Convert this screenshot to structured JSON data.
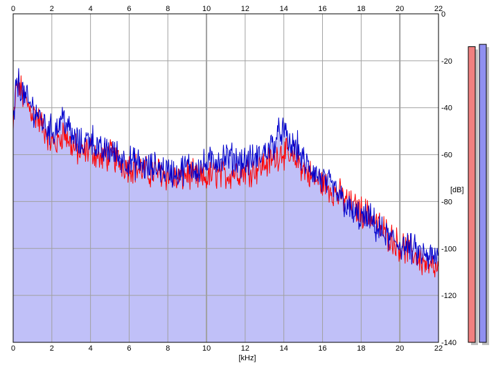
{
  "chart_data": {
    "type": "area",
    "title": "",
    "xlabel": "[kHz]",
    "ylabel": "[dB]",
    "xlim": [
      0,
      22
    ],
    "ylim": [
      -140,
      0
    ],
    "x_ticks": [
      0,
      2,
      4,
      6,
      8,
      10,
      12,
      14,
      16,
      18,
      20,
      22
    ],
    "y_ticks": [
      0,
      -20,
      -40,
      -60,
      -80,
      -100,
      -120,
      -140
    ],
    "grid": true,
    "legend": "none",
    "colors": {
      "left_channel": "#ff0000",
      "right_channel": "#0000cc",
      "fill": "#c0c0f8",
      "grid": "#a0a0a0",
      "meter_left": "#f08080",
      "meter_right": "#9090f0"
    },
    "series": [
      {
        "color": "red",
        "x": [
          0,
          0.15,
          0.3,
          0.5,
          0.7,
          1,
          1.3,
          1.6,
          2,
          2.3,
          2.6,
          3,
          3.5,
          4,
          4.5,
          5,
          5.5,
          6,
          6.5,
          7,
          7.5,
          8,
          8.5,
          9,
          9.5,
          10,
          10.5,
          11,
          11.5,
          12,
          12.5,
          13,
          13.5,
          13.9,
          14.3,
          14.7,
          15,
          15.5,
          16,
          16.5,
          17,
          17.5,
          18,
          18.5,
          19,
          19.5,
          20,
          20.5,
          21,
          21.5,
          22
        ],
        "y": [
          -50,
          -32,
          -30,
          -35,
          -38,
          -42,
          -45,
          -49,
          -55,
          -55,
          -50,
          -56,
          -60,
          -57,
          -62,
          -60,
          -63,
          -65,
          -66,
          -68,
          -67,
          -69,
          -71,
          -68,
          -70,
          -70,
          -68,
          -69,
          -67,
          -67,
          -66,
          -64,
          -62,
          -58,
          -62,
          -62,
          -66,
          -70,
          -72,
          -75,
          -78,
          -82,
          -84,
          -86,
          -91,
          -95,
          -99,
          -101,
          -104,
          -108,
          -110
        ]
      },
      {
        "color": "blue",
        "x": [
          0,
          0.15,
          0.3,
          0.5,
          0.7,
          1,
          1.3,
          1.6,
          2,
          2.3,
          2.6,
          3,
          3.5,
          4,
          4.5,
          5,
          5.5,
          6,
          6.5,
          7,
          7.5,
          8,
          8.5,
          9,
          9.5,
          10,
          10.5,
          11,
          11.5,
          12,
          12.5,
          13,
          13.5,
          13.9,
          14.3,
          14.7,
          15,
          15.5,
          16,
          16.5,
          17,
          17.5,
          18,
          18.5,
          19,
          19.5,
          20,
          20.5,
          21,
          21.5,
          22
        ],
        "y": [
          -48,
          -31,
          -29,
          -34,
          -37,
          -40,
          -43,
          -47,
          -50,
          -48,
          -43,
          -52,
          -56,
          -52,
          -59,
          -58,
          -61,
          -63,
          -64,
          -66,
          -65,
          -67,
          -68,
          -65,
          -66,
          -64,
          -62,
          -61,
          -62,
          -63,
          -62,
          -59,
          -55,
          -49,
          -56,
          -57,
          -63,
          -67,
          -71,
          -74,
          -79,
          -85,
          -87,
          -88,
          -93,
          -96,
          -98,
          -100,
          -102,
          -104,
          -104
        ]
      }
    ],
    "level_meters": [
      {
        "color": "red",
        "level_db": -14
      },
      {
        "color": "blue",
        "level_db": -13
      }
    ]
  }
}
